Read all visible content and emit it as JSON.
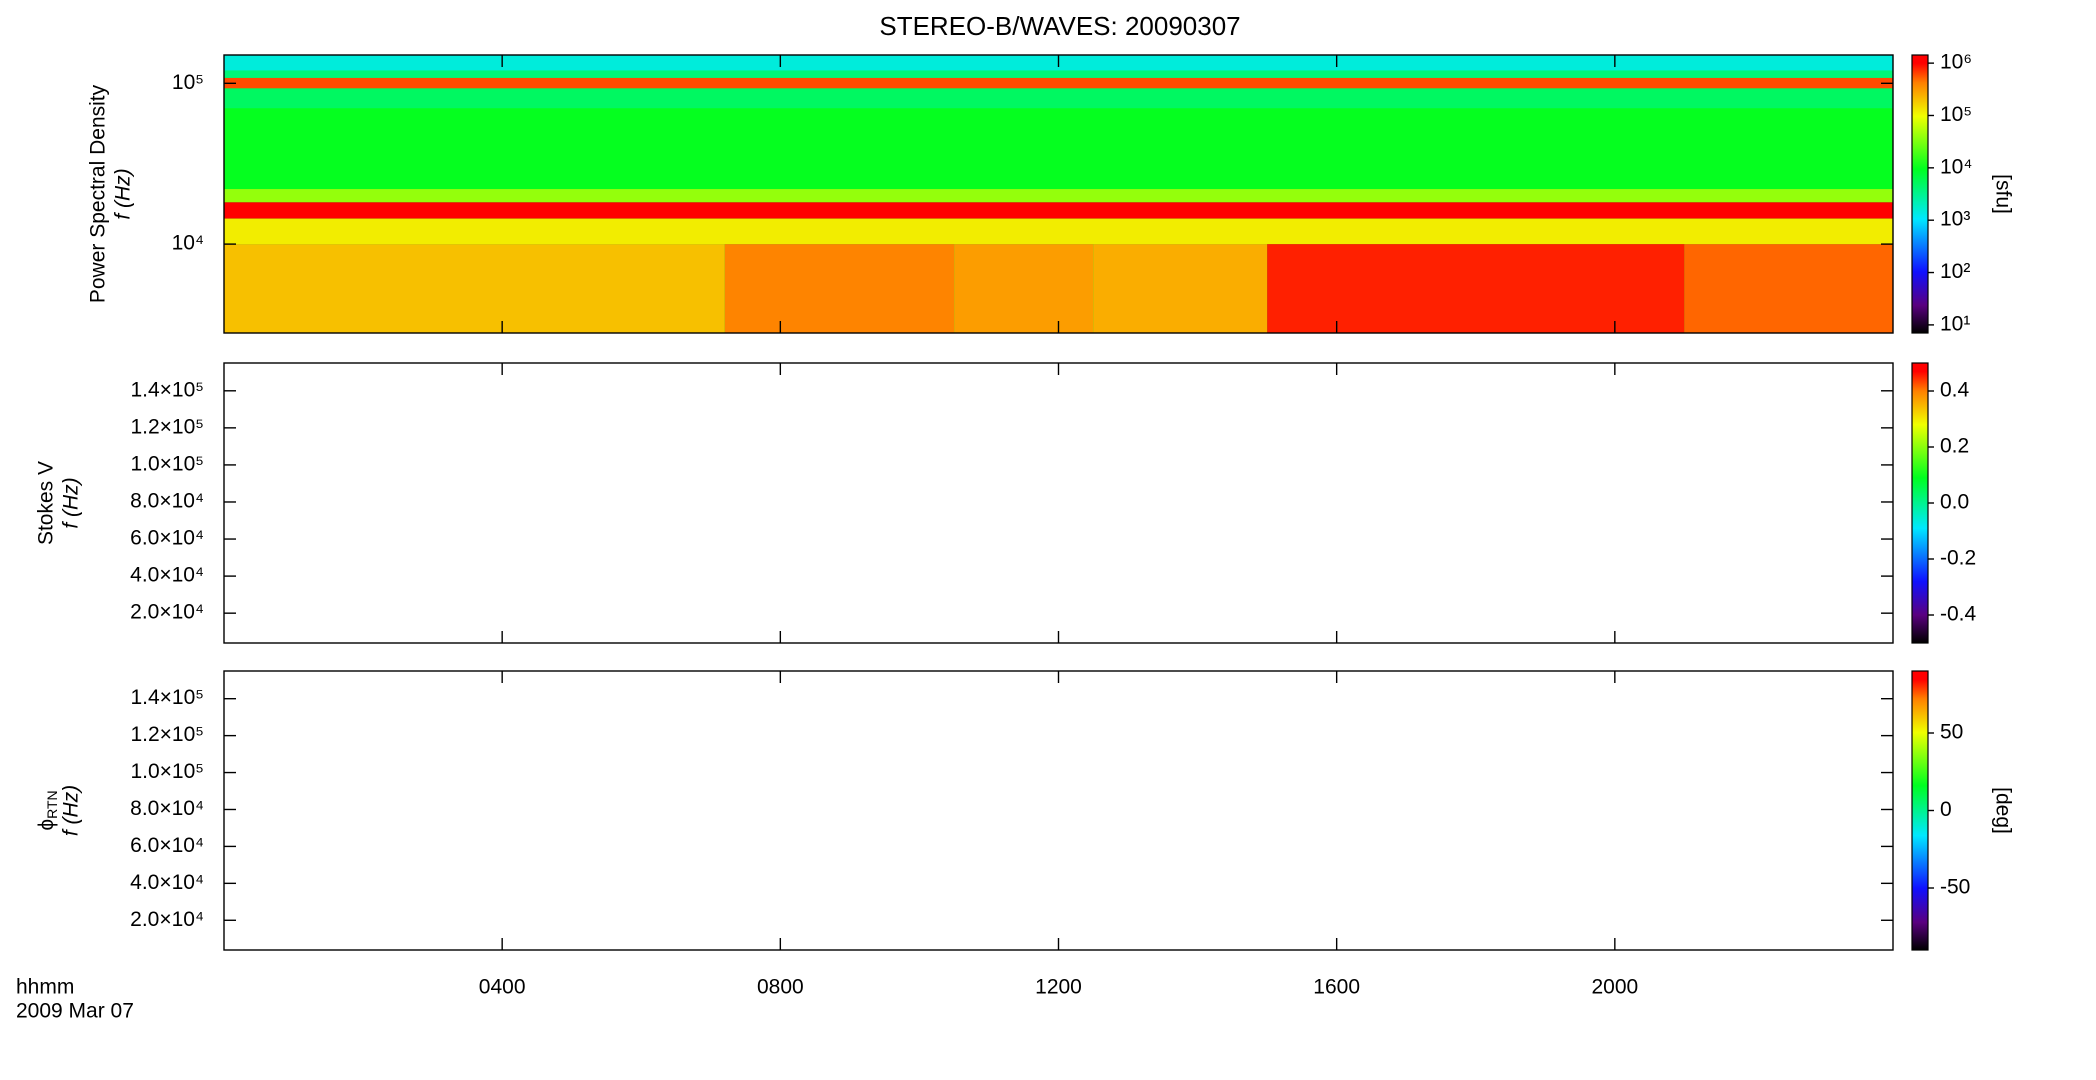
{
  "chart_data": [
    {
      "type": "heatmap",
      "title": "STEREO-B/WAVES: 20090307",
      "ylabel": "Power Spectral Density",
      "ylabel2": "f (Hz)",
      "xlim": [
        0,
        24
      ],
      "ylim": [
        2800,
        150000
      ],
      "ylog": true,
      "yticks": [
        {
          "value": 10000,
          "label": "10⁴"
        },
        {
          "value": 100000,
          "label": "10⁵"
        }
      ],
      "colormap": "rainbow",
      "clim": [
        7,
        1430000
      ],
      "clog": true,
      "colorbar_label": "[sfu]",
      "cticks": [
        {
          "value": 10,
          "label": "10¹"
        },
        {
          "value": 100,
          "label": "10²"
        },
        {
          "value": 1000,
          "label": "10³"
        },
        {
          "value": 10000,
          "label": "10⁴"
        },
        {
          "value": 100000,
          "label": "10⁵"
        },
        {
          "value": 1000000,
          "label": "10⁶"
        }
      ],
      "cells": [
        {
          "t": [
            0,
            24
          ],
          "f": [
            2800,
            150000
          ],
          "value": 10000
        },
        {
          "t": [
            0,
            24
          ],
          "f": [
            120000,
            150000
          ],
          "value": 1500
        },
        {
          "t": [
            0,
            24
          ],
          "f": [
            108000,
            120000
          ],
          "value": 4000
        },
        {
          "t": [
            0,
            24
          ],
          "f": [
            93000,
            108000
          ],
          "value": 600000
        },
        {
          "t": [
            0,
            24
          ],
          "f": [
            70000,
            93000
          ],
          "value": 5000
        },
        {
          "t": [
            0,
            24
          ],
          "f": [
            18200,
            22000
          ],
          "value": 40000
        },
        {
          "t": [
            0,
            24
          ],
          "f": [
            14400,
            18200
          ],
          "value": 1000000
        },
        {
          "t": [
            0,
            24
          ],
          "f": [
            10000,
            14400
          ],
          "value": 120000
        },
        {
          "t": [
            0,
            7.2
          ],
          "f": [
            2800,
            10000
          ],
          "value": 200000
        },
        {
          "t": [
            7.2,
            10.5
          ],
          "f": [
            2800,
            10000
          ],
          "value": 400000
        },
        {
          "t": [
            10.5,
            12.5
          ],
          "f": [
            2800,
            10000
          ],
          "value": 300000
        },
        {
          "t": [
            12.5,
            15
          ],
          "f": [
            2800,
            10000
          ],
          "value": 250000
        },
        {
          "t": [
            15,
            21
          ],
          "f": [
            2800,
            10000
          ],
          "value": 800000
        },
        {
          "t": [
            21,
            24
          ],
          "f": [
            2800,
            10000
          ],
          "value": 500000
        }
      ]
    },
    {
      "type": "heatmap",
      "ylabel": "Stokes V",
      "ylabel2": "f (Hz)",
      "xlim": [
        0,
        24
      ],
      "ylim": [
        3900,
        155000
      ],
      "ylog": false,
      "yticks": [
        {
          "value": 20000,
          "label": "2.0×10⁴"
        },
        {
          "value": 40000,
          "label": "4.0×10⁴"
        },
        {
          "value": 60000,
          "label": "6.0×10⁴"
        },
        {
          "value": 80000,
          "label": "8.0×10⁴"
        },
        {
          "value": 100000,
          "label": "1.0×10⁵"
        },
        {
          "value": 120000,
          "label": "1.2×10⁵"
        },
        {
          "value": 140000,
          "label": "1.4×10⁵"
        }
      ],
      "colormap": "rainbow",
      "clim": [
        -0.5,
        0.5
      ],
      "clog": false,
      "cticks": [
        -0.4,
        -0.2,
        {
          "value": 0,
          "label": "0.0"
        },
        0.2,
        0.4
      ],
      "cells": []
    },
    {
      "type": "heatmap",
      "ylabel": {
        "symbol": "ϕ",
        "subscript": "RTN"
      },
      "ylabel2": "f (Hz)",
      "xlim": [
        0,
        24
      ],
      "ylim": [
        3900,
        155000
      ],
      "ylog": false,
      "yticks": [
        {
          "value": 20000,
          "label": "2.0×10⁴"
        },
        {
          "value": 40000,
          "label": "4.0×10⁴"
        },
        {
          "value": 60000,
          "label": "6.0×10⁴"
        },
        {
          "value": 80000,
          "label": "8.0×10⁴"
        },
        {
          "value": 100000,
          "label": "1.0×10⁵"
        },
        {
          "value": 120000,
          "label": "1.2×10⁵"
        },
        {
          "value": 140000,
          "label": "1.4×10⁵"
        }
      ],
      "colormap": "rainbow",
      "clim": [
        -90,
        90
      ],
      "clog": false,
      "colorbar_label": "[deg]",
      "cticks": [
        -50,
        0,
        50
      ],
      "xlabel": [
        "hhmm",
        "2009 Mar 07"
      ],
      "xticks": [
        {
          "value": 4,
          "label": "0400"
        },
        {
          "value": 8,
          "label": "0800"
        },
        {
          "value": 12,
          "label": "1200"
        },
        {
          "value": 16,
          "label": "1600"
        },
        {
          "value": 20,
          "label": "2000"
        }
      ],
      "cells": []
    }
  ]
}
